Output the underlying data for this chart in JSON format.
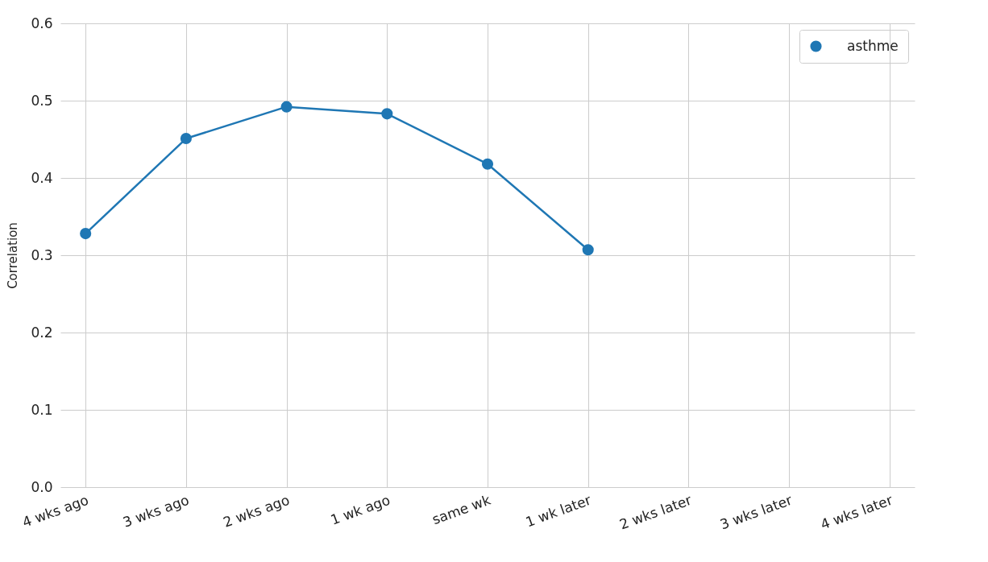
{
  "chart_data": {
    "type": "line",
    "ylabel": "Correlation",
    "categories": [
      "4 wks ago",
      "3 wks ago",
      "2 wks ago",
      "1 wk ago",
      "same wk",
      "1 wk later",
      "2 wks later",
      "3 wks later",
      "4 wks later"
    ],
    "series": [
      {
        "name": "asthme",
        "color": "#1f77b4",
        "values": [
          0.328,
          0.451,
          0.492,
          0.483,
          0.418,
          0.307,
          null,
          null,
          null
        ]
      }
    ],
    "ylim": [
      0,
      0.6
    ],
    "yticks": [
      {
        "value": 0,
        "label": "0.0"
      },
      0.1,
      0.2,
      0.3,
      0.4,
      0.5,
      0.6
    ],
    "grid": true,
    "legend": "top right",
    "marker": "circle",
    "line_style": "solid"
  }
}
